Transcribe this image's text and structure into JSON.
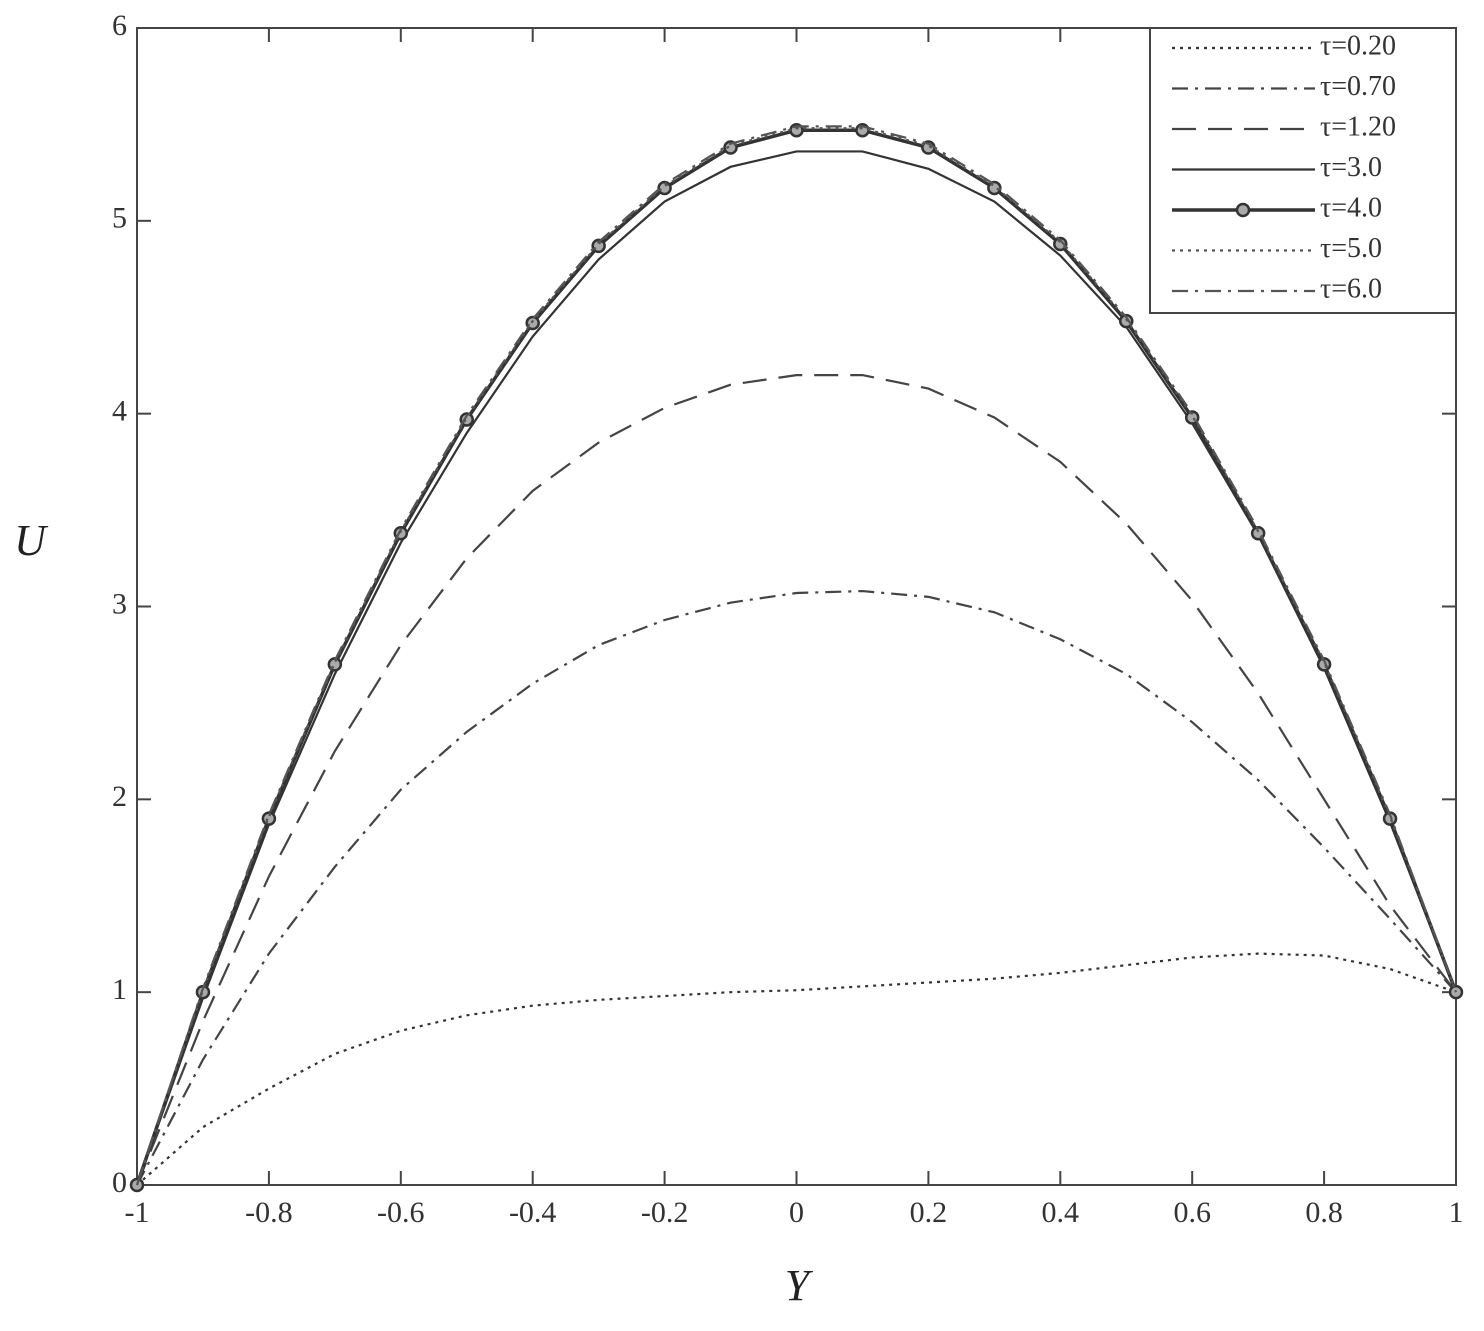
{
  "chart_data": {
    "type": "line",
    "x_label": "Y",
    "y_label": "U",
    "x": [
      -1,
      -0.9,
      -0.8,
      -0.7,
      -0.6,
      -0.5,
      -0.4,
      -0.3,
      -0.2,
      -0.1,
      0,
      0.1,
      0.2,
      0.3,
      0.4,
      0.5,
      0.6,
      0.7,
      0.8,
      0.9,
      1
    ],
    "series": [
      {
        "name": "τ=0.20",
        "color": "#333333",
        "dash": "dotted",
        "values": [
          0,
          0.3,
          0.5,
          0.68,
          0.8,
          0.88,
          0.93,
          0.96,
          0.98,
          1.0,
          1.01,
          1.03,
          1.05,
          1.07,
          1.1,
          1.14,
          1.18,
          1.2,
          1.19,
          1.12,
          1.0
        ]
      },
      {
        "name": "τ=0.70",
        "color": "#444444",
        "dash": "dashdot",
        "values": [
          0,
          0.65,
          1.2,
          1.65,
          2.05,
          2.35,
          2.6,
          2.8,
          2.93,
          3.02,
          3.07,
          3.08,
          3.05,
          2.97,
          2.83,
          2.65,
          2.4,
          2.1,
          1.75,
          1.38,
          1.0
        ]
      },
      {
        "name": "τ=1.20",
        "color": "#444444",
        "dash": "dashed",
        "values": [
          0,
          0.85,
          1.6,
          2.25,
          2.8,
          3.25,
          3.6,
          3.85,
          4.03,
          4.15,
          4.2,
          4.2,
          4.13,
          3.98,
          3.75,
          3.43,
          3.03,
          2.55,
          2.0,
          1.45,
          1.0
        ]
      },
      {
        "name": "τ=3.0",
        "color": "#333333",
        "dash": "solid",
        "values": [
          0,
          0.97,
          1.87,
          2.65,
          3.33,
          3.9,
          4.4,
          4.8,
          5.1,
          5.28,
          5.36,
          5.36,
          5.27,
          5.1,
          4.82,
          4.45,
          3.95,
          3.37,
          2.68,
          1.88,
          1.0
        ]
      },
      {
        "name": "τ=4.0",
        "color": "#333333",
        "dash": "solid",
        "marker": "circle",
        "values": [
          0,
          1.0,
          1.9,
          2.7,
          3.38,
          3.97,
          4.47,
          4.87,
          5.17,
          5.38,
          5.47,
          5.47,
          5.38,
          5.17,
          4.88,
          4.48,
          3.98,
          3.38,
          2.7,
          1.9,
          1.0
        ]
      },
      {
        "name": "τ=5.0",
        "color": "#555555",
        "dash": "dotted",
        "values": [
          0,
          1.01,
          1.91,
          2.71,
          3.39,
          3.98,
          4.48,
          4.88,
          5.18,
          5.39,
          5.48,
          5.48,
          5.39,
          5.18,
          4.89,
          4.49,
          3.99,
          3.39,
          2.71,
          1.91,
          1.0
        ]
      },
      {
        "name": "τ=6.0",
        "color": "#555555",
        "dash": "dashdot",
        "values": [
          0,
          1.02,
          1.92,
          2.72,
          3.4,
          3.99,
          4.49,
          4.89,
          5.19,
          5.4,
          5.49,
          5.49,
          5.4,
          5.19,
          4.9,
          4.5,
          4.0,
          3.4,
          2.72,
          1.92,
          1.0
        ]
      }
    ],
    "xlim": [
      -1,
      1
    ],
    "xticks": [
      -1,
      -0.8,
      -0.6,
      -0.4,
      -0.2,
      0,
      0.2,
      0.4,
      0.6,
      0.8,
      1
    ],
    "ylim": [
      0,
      6
    ],
    "yticks": [
      0,
      1,
      2,
      3,
      4,
      5,
      6
    ],
    "grid": false,
    "legend": "top-right"
  }
}
